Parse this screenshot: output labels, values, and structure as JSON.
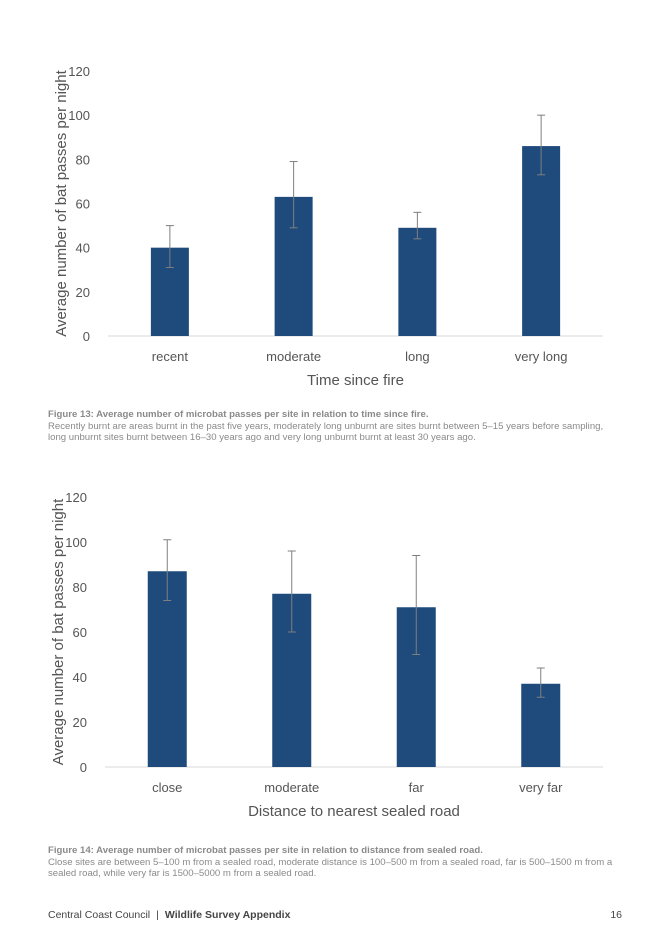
{
  "chart_data": [
    {
      "type": "bar",
      "categories": [
        "recent",
        "moderate",
        "long",
        "very long"
      ],
      "values": [
        40,
        63,
        49,
        86
      ],
      "error_low": [
        31,
        49,
        44,
        73
      ],
      "error_high": [
        50,
        79,
        56,
        100
      ],
      "xlabel": "Time since fire",
      "ylabel": "Average number of bat passes per night",
      "ylim": [
        0,
        120
      ],
      "yticks": [
        "0",
        "20",
        "40",
        "60",
        "80",
        "100",
        "120"
      ],
      "bar_color": "#1f4a7c",
      "grid": false
    },
    {
      "type": "bar",
      "categories": [
        "close",
        "moderate",
        "far",
        "very far"
      ],
      "values": [
        87,
        77,
        71,
        37
      ],
      "error_low": [
        74,
        60,
        50,
        31
      ],
      "error_high": [
        101,
        96,
        94,
        44
      ],
      "xlabel": "Distance to nearest sealed road",
      "ylabel": "Average number of bat passes per night",
      "ylim": [
        0,
        120
      ],
      "yticks": [
        "0",
        "20",
        "40",
        "60",
        "80",
        "100",
        "120"
      ],
      "bar_color": "#1f4a7c",
      "grid": false
    }
  ],
  "captions": [
    {
      "label": "Figure 13: Average number of microbat passes per site in relation to time since fire.",
      "text": "Recently burnt are areas burnt in the past five years, moderately long unburnt are sites burnt between 5–15 years before sampling, long unburnt sites burnt between 16–30 years ago and very long unburnt burnt at least 30 years ago."
    },
    {
      "label": "Figure 14: Average number of microbat passes per site in relation to distance from sealed road.",
      "text": "Close sites are between 5–100 m from a sealed road, moderate distance is 100–500 m from a sealed road, far is 500–1500 m from a sealed road, while very far is 1500–5000 m from a sealed road."
    }
  ],
  "footer": {
    "org": "Central Coast Council",
    "separator": "|",
    "doc_title": "Wildlife Survey Appendix",
    "page_number": "16"
  }
}
